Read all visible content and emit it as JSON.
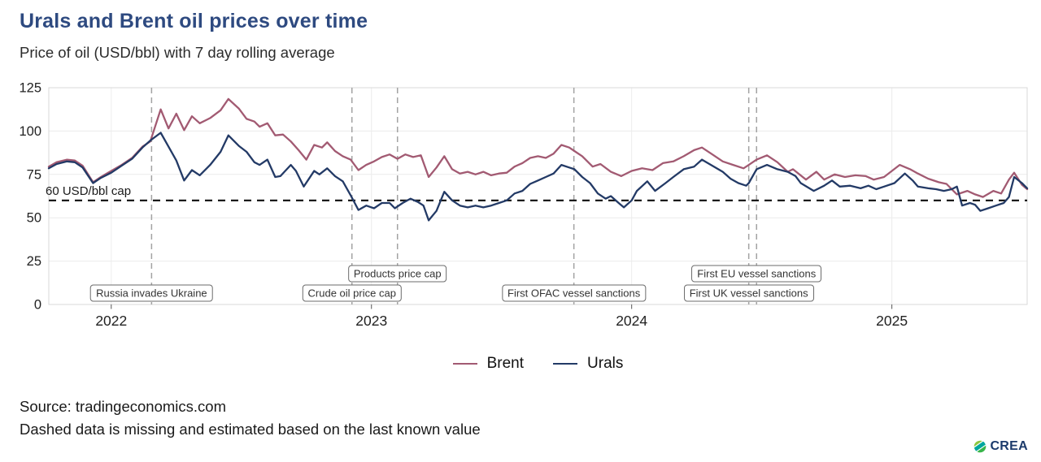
{
  "title": "Urals and Brent oil prices over time",
  "subtitle": "Price of oil (USD/bbl) with 7 day rolling average",
  "source_line1": "Source: tradingeconomics.com",
  "source_line2": "Dashed data is missing and estimated based on the last known value",
  "logo_text": "CREA",
  "colors": {
    "title": "#2e4a80",
    "brent": "#a25a72",
    "urals": "#233a66",
    "cap_line": "#1a1a1a",
    "event_line": "#a3a3a3",
    "grid": "#ececec",
    "frame": "#d9d9d9",
    "logo_navy": "#1b3a6b",
    "logo_greens": [
      "#8dc63f",
      "#00a79d",
      "#39b54a"
    ]
  },
  "chart_data": {
    "type": "line",
    "title": "Urals and Brent oil prices over time",
    "xlabel": "",
    "ylabel": "USD/bbl",
    "ylim": [
      0,
      125
    ],
    "yticks": [
      0,
      25,
      50,
      75,
      100,
      125
    ],
    "xlim": [
      2021.76,
      2025.52
    ],
    "xticks": [
      {
        "t": 2022,
        "label": "2022"
      },
      {
        "t": 2023,
        "label": "2023"
      },
      {
        "t": 2024,
        "label": "2024"
      },
      {
        "t": 2025,
        "label": "2025"
      }
    ],
    "grid": true,
    "legend_position": "bottom",
    "cap_line": {
      "value": 60,
      "label": "60 USD/bbl cap"
    },
    "events": [
      {
        "t": 2022.155,
        "label": "Russia invades Ukraine",
        "row": "bottom"
      },
      {
        "t": 2022.925,
        "label": "Crude oil price cap",
        "row": "bottom"
      },
      {
        "t": 2023.1,
        "label": "Products price cap",
        "row": "top"
      },
      {
        "t": 2023.778,
        "label": "First OFAC vessel sanctions",
        "row": "bottom"
      },
      {
        "t": 2024.45,
        "label": "First UK vessel sanctions",
        "row": "bottom"
      },
      {
        "t": 2024.48,
        "label": "First EU vessel sanctions",
        "row": "top"
      }
    ],
    "series": [
      {
        "name": "Brent",
        "color": "#a25a72",
        "points": [
          [
            2021.76,
            79.5
          ],
          [
            2021.79,
            82
          ],
          [
            2021.83,
            83.5
          ],
          [
            2021.86,
            83
          ],
          [
            2021.89,
            80
          ],
          [
            2021.93,
            70.5
          ],
          [
            2021.96,
            73.5
          ],
          [
            2022.0,
            77
          ],
          [
            2022.04,
            80.5
          ],
          [
            2022.08,
            84.5
          ],
          [
            2022.12,
            91
          ],
          [
            2022.15,
            94
          ],
          [
            2022.19,
            112.5
          ],
          [
            2022.22,
            101.5
          ],
          [
            2022.25,
            110
          ],
          [
            2022.28,
            100.5
          ],
          [
            2022.31,
            108.5
          ],
          [
            2022.34,
            104.5
          ],
          [
            2022.38,
            107.5
          ],
          [
            2022.42,
            112
          ],
          [
            2022.45,
            118.5
          ],
          [
            2022.49,
            113
          ],
          [
            2022.52,
            107
          ],
          [
            2022.55,
            105.5
          ],
          [
            2022.57,
            102.5
          ],
          [
            2022.6,
            104.5
          ],
          [
            2022.63,
            97.5
          ],
          [
            2022.66,
            98
          ],
          [
            2022.69,
            94
          ],
          [
            2022.72,
            89
          ],
          [
            2022.75,
            83.5
          ],
          [
            2022.78,
            92
          ],
          [
            2022.81,
            90.5
          ],
          [
            2022.83,
            93.5
          ],
          [
            2022.86,
            88.5
          ],
          [
            2022.89,
            85.5
          ],
          [
            2022.92,
            83.5
          ],
          [
            2022.95,
            77.5
          ],
          [
            2022.98,
            80.5
          ],
          [
            2023.01,
            82.5
          ],
          [
            2023.04,
            85
          ],
          [
            2023.07,
            86.5
          ],
          [
            2023.1,
            84
          ],
          [
            2023.13,
            86.5
          ],
          [
            2023.16,
            85
          ],
          [
            2023.19,
            86
          ],
          [
            2023.22,
            73.5
          ],
          [
            2023.25,
            79
          ],
          [
            2023.28,
            85.5
          ],
          [
            2023.31,
            78
          ],
          [
            2023.34,
            75.5
          ],
          [
            2023.37,
            76.5
          ],
          [
            2023.4,
            75
          ],
          [
            2023.43,
            76.5
          ],
          [
            2023.46,
            74.5
          ],
          [
            2023.49,
            75.5
          ],
          [
            2023.52,
            76
          ],
          [
            2023.55,
            79.5
          ],
          [
            2023.58,
            81.5
          ],
          [
            2023.61,
            84.5
          ],
          [
            2023.64,
            85.5
          ],
          [
            2023.67,
            84.5
          ],
          [
            2023.7,
            87
          ],
          [
            2023.73,
            92
          ],
          [
            2023.76,
            90.5
          ],
          [
            2023.78,
            88.5
          ],
          [
            2023.81,
            85.5
          ],
          [
            2023.85,
            79.5
          ],
          [
            2023.88,
            81
          ],
          [
            2023.92,
            76.5
          ],
          [
            2023.96,
            74
          ],
          [
            2024.0,
            77
          ],
          [
            2024.04,
            78.5
          ],
          [
            2024.08,
            77.5
          ],
          [
            2024.12,
            81.5
          ],
          [
            2024.16,
            82.5
          ],
          [
            2024.2,
            85.5
          ],
          [
            2024.24,
            89
          ],
          [
            2024.27,
            90.5
          ],
          [
            2024.31,
            86.5
          ],
          [
            2024.35,
            82.5
          ],
          [
            2024.39,
            80.5
          ],
          [
            2024.43,
            78.5
          ],
          [
            2024.45,
            80.5
          ],
          [
            2024.48,
            83.5
          ],
          [
            2024.52,
            86
          ],
          [
            2024.56,
            82
          ],
          [
            2024.6,
            76.5
          ],
          [
            2024.62,
            78
          ],
          [
            2024.67,
            72
          ],
          [
            2024.71,
            76.5
          ],
          [
            2024.74,
            72
          ],
          [
            2024.78,
            75
          ],
          [
            2024.82,
            73.5
          ],
          [
            2024.86,
            74.5
          ],
          [
            2024.9,
            74
          ],
          [
            2024.93,
            72
          ],
          [
            2024.97,
            73.5
          ],
          [
            2025.03,
            80.5
          ],
          [
            2025.07,
            78
          ],
          [
            2025.1,
            75.5
          ],
          [
            2025.14,
            72.5
          ],
          [
            2025.18,
            70.5
          ],
          [
            2025.21,
            69.5
          ],
          [
            2025.25,
            63.5
          ],
          [
            2025.29,
            65.5
          ],
          [
            2025.32,
            63.5
          ],
          [
            2025.35,
            62
          ],
          [
            2025.39,
            65.5
          ],
          [
            2025.42,
            64
          ],
          [
            2025.45,
            72
          ],
          [
            2025.47,
            76
          ],
          [
            2025.5,
            69
          ],
          [
            2025.52,
            66.5
          ]
        ]
      },
      {
        "name": "Urals",
        "color": "#233a66",
        "points": [
          [
            2021.76,
            78.5
          ],
          [
            2021.79,
            81
          ],
          [
            2021.83,
            82.5
          ],
          [
            2021.86,
            82
          ],
          [
            2021.89,
            79
          ],
          [
            2021.93,
            70
          ],
          [
            2021.96,
            73
          ],
          [
            2022.0,
            76
          ],
          [
            2022.04,
            80
          ],
          [
            2022.08,
            84
          ],
          [
            2022.12,
            90.5
          ],
          [
            2022.15,
            94.5
          ],
          [
            2022.19,
            99
          ],
          [
            2022.22,
            91
          ],
          [
            2022.25,
            83
          ],
          [
            2022.28,
            71.5
          ],
          [
            2022.31,
            77.5
          ],
          [
            2022.34,
            74.5
          ],
          [
            2022.38,
            80.5
          ],
          [
            2022.42,
            88
          ],
          [
            2022.45,
            97.5
          ],
          [
            2022.49,
            91.5
          ],
          [
            2022.52,
            88
          ],
          [
            2022.55,
            82
          ],
          [
            2022.57,
            80.5
          ],
          [
            2022.6,
            83.5
          ],
          [
            2022.63,
            73.5
          ],
          [
            2022.65,
            74
          ],
          [
            2022.69,
            80.5
          ],
          [
            2022.71,
            77
          ],
          [
            2022.74,
            68
          ],
          [
            2022.78,
            77
          ],
          [
            2022.8,
            75
          ],
          [
            2022.83,
            78.5
          ],
          [
            2022.86,
            74
          ],
          [
            2022.89,
            71
          ],
          [
            2022.92,
            63
          ],
          [
            2022.95,
            54.5
          ],
          [
            2022.98,
            57
          ],
          [
            2023.01,
            55.5
          ],
          [
            2023.04,
            58.5
          ],
          [
            2023.07,
            58.5
          ],
          [
            2023.09,
            55.5
          ],
          [
            2023.12,
            58.5
          ],
          [
            2023.15,
            61
          ],
          [
            2023.18,
            59
          ],
          [
            2023.2,
            57
          ],
          [
            2023.22,
            48.5
          ],
          [
            2023.25,
            54
          ],
          [
            2023.28,
            65
          ],
          [
            2023.31,
            60
          ],
          [
            2023.34,
            57
          ],
          [
            2023.37,
            56
          ],
          [
            2023.4,
            57
          ],
          [
            2023.43,
            56
          ],
          [
            2023.46,
            57
          ],
          [
            2023.49,
            58.5
          ],
          [
            2023.52,
            60
          ],
          [
            2023.55,
            64
          ],
          [
            2023.58,
            65.5
          ],
          [
            2023.61,
            69.5
          ],
          [
            2023.64,
            71.5
          ],
          [
            2023.67,
            73.5
          ],
          [
            2023.7,
            75.5
          ],
          [
            2023.73,
            80.5
          ],
          [
            2023.76,
            79
          ],
          [
            2023.78,
            78
          ],
          [
            2023.81,
            73.5
          ],
          [
            2023.84,
            70
          ],
          [
            2023.87,
            64
          ],
          [
            2023.9,
            61
          ],
          [
            2023.92,
            62.5
          ],
          [
            2023.95,
            58.5
          ],
          [
            2023.97,
            56
          ],
          [
            2024.0,
            60
          ],
          [
            2024.02,
            65.5
          ],
          [
            2024.06,
            71
          ],
          [
            2024.09,
            65.5
          ],
          [
            2024.13,
            70
          ],
          [
            2024.16,
            73.5
          ],
          [
            2024.2,
            78
          ],
          [
            2024.24,
            79.5
          ],
          [
            2024.27,
            83.5
          ],
          [
            2024.31,
            80
          ],
          [
            2024.35,
            76.5
          ],
          [
            2024.38,
            72.5
          ],
          [
            2024.41,
            70
          ],
          [
            2024.44,
            68.5
          ],
          [
            2024.45,
            70
          ],
          [
            2024.48,
            78
          ],
          [
            2024.52,
            80.5
          ],
          [
            2024.56,
            78
          ],
          [
            2024.6,
            76.5
          ],
          [
            2024.63,
            74
          ],
          [
            2024.65,
            70
          ],
          [
            2024.7,
            65.5
          ],
          [
            2024.74,
            68.5
          ],
          [
            2024.77,
            71.5
          ],
          [
            2024.8,
            68
          ],
          [
            2024.84,
            68.5
          ],
          [
            2024.88,
            67
          ],
          [
            2024.91,
            68.5
          ],
          [
            2024.94,
            66.5
          ],
          [
            2024.97,
            68
          ],
          [
            2025.01,
            70
          ],
          [
            2025.05,
            75.5
          ],
          [
            2025.08,
            71.5
          ],
          [
            2025.1,
            68
          ],
          [
            2025.14,
            67
          ],
          [
            2025.17,
            66.5
          ],
          [
            2025.2,
            65.5
          ],
          [
            2025.23,
            66.5
          ],
          [
            2025.25,
            68
          ],
          [
            2025.27,
            57
          ],
          [
            2025.3,
            58.5
          ],
          [
            2025.32,
            57.5
          ],
          [
            2025.34,
            54
          ],
          [
            2025.37,
            55.5
          ],
          [
            2025.4,
            57
          ],
          [
            2025.43,
            58.5
          ],
          [
            2025.45,
            62
          ],
          [
            2025.47,
            73.5
          ],
          [
            2025.5,
            70
          ],
          [
            2025.52,
            67
          ]
        ]
      }
    ]
  }
}
